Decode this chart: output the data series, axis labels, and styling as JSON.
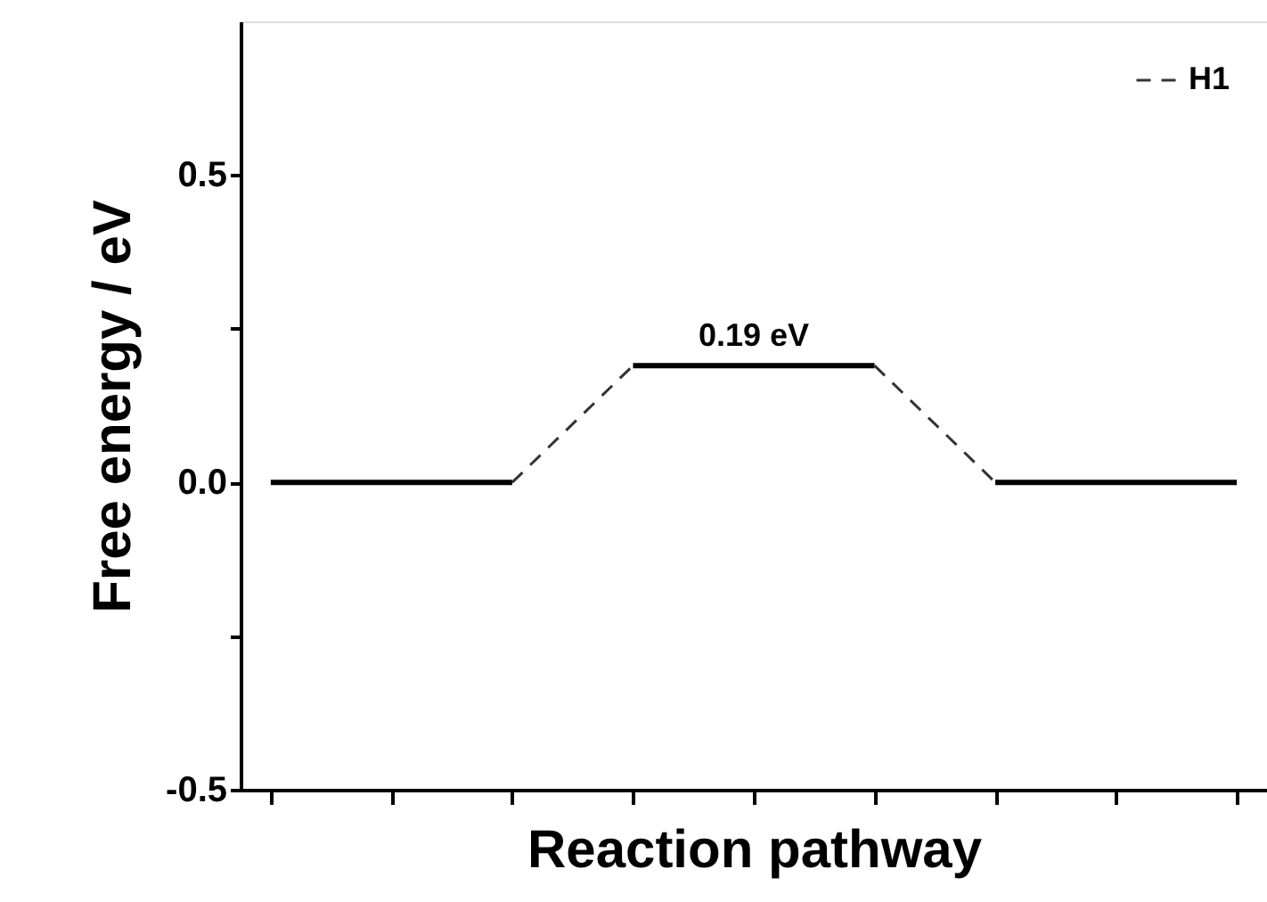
{
  "chart_data": {
    "type": "line",
    "xlabel": "Reaction pathway",
    "ylabel": "Free energy / eV",
    "categories": [
      null,
      null,
      null,
      null,
      null,
      null,
      null,
      null,
      null,
      null,
      null,
      null,
      null,
      null,
      null,
      null,
      null
    ],
    "ylim": [
      -0.5,
      0.75
    ],
    "yticks": [
      -0.5,
      {
        "value": -0.25,
        "label": null
      },
      {
        "value": 0,
        "label": "0.0"
      },
      {
        "value": 0.25,
        "label": null
      },
      0.5
    ],
    "tick_labels": "y",
    "grid": false,
    "legend": "top right",
    "series": [
      {
        "color": "#000000",
        "line_style": "solid",
        "values": [
          0,
          0,
          0,
          0,
          0,
          null,
          null,
          null,
          null,
          null,
          null,
          null,
          null,
          null,
          null,
          null,
          null
        ]
      },
      {
        "color": "#000000",
        "line_style": "solid",
        "values": [
          null,
          null,
          null,
          null,
          null,
          null,
          0.19,
          0.19,
          0.19,
          0.19,
          0.19,
          null,
          null,
          null,
          null,
          null,
          null
        ]
      },
      {
        "color": "#000000",
        "line_style": "solid",
        "values": [
          null,
          null,
          null,
          null,
          null,
          null,
          null,
          null,
          null,
          null,
          null,
          null,
          0,
          0,
          0,
          0,
          0
        ]
      },
      {
        "name": "H1",
        "color": "#333333",
        "line_style": "dashed",
        "values": [
          null,
          null,
          null,
          null,
          0,
          0.095,
          0.19,
          null,
          null,
          null,
          null,
          null,
          null,
          null,
          null,
          null,
          null
        ]
      },
      {
        "color": "#333333",
        "line_style": "dashed",
        "values": [
          null,
          null,
          null,
          null,
          null,
          null,
          null,
          null,
          null,
          null,
          0.19,
          0.095,
          0,
          null,
          null,
          null,
          null
        ]
      }
    ],
    "annotations": [
      {
        "text": "0.19 eV",
        "y": 0.19
      }
    ]
  }
}
